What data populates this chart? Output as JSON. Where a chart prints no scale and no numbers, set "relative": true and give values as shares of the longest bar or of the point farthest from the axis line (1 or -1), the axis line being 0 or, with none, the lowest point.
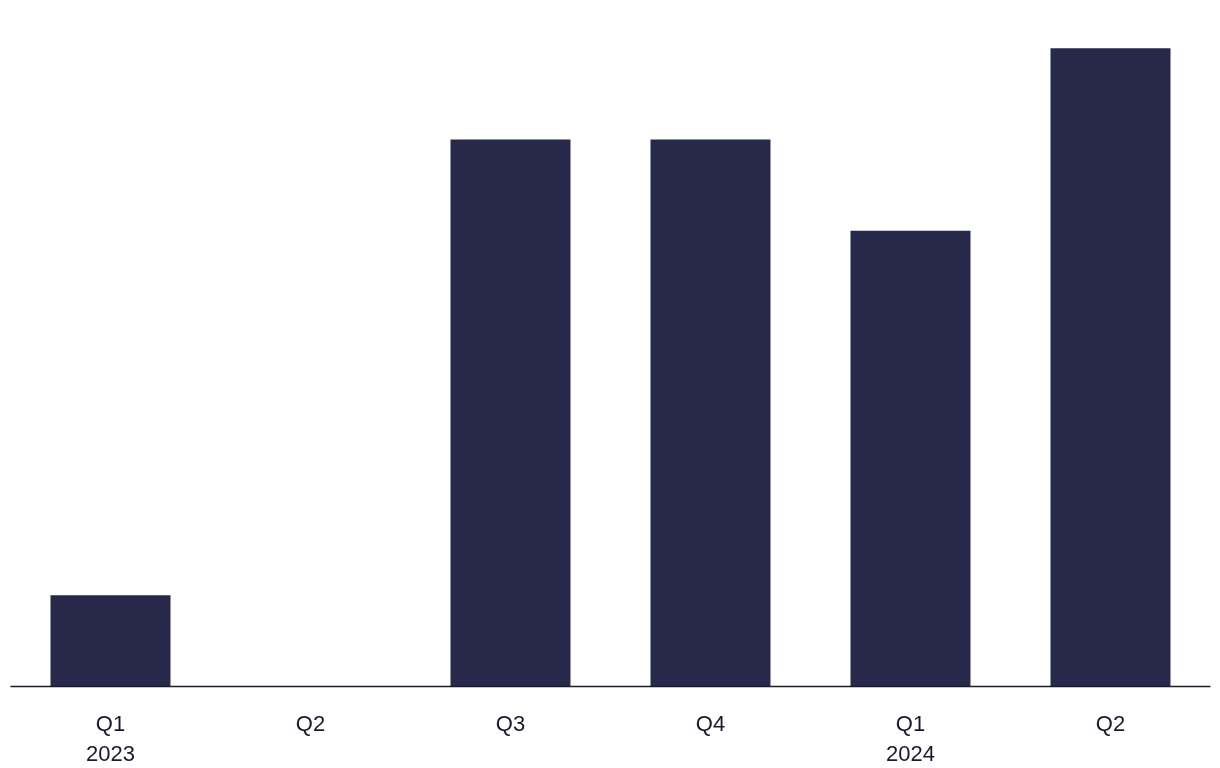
{
  "chart_data": {
    "type": "bar",
    "relative": true,
    "categories": [
      "Q1\n2023",
      "Q2",
      "Q3",
      "Q4",
      "Q1\n2024",
      "Q2"
    ],
    "values": [
      0.143,
      0,
      0.857,
      0.857,
      0.714,
      1
    ],
    "color": "#28284a",
    "grid": false
  }
}
